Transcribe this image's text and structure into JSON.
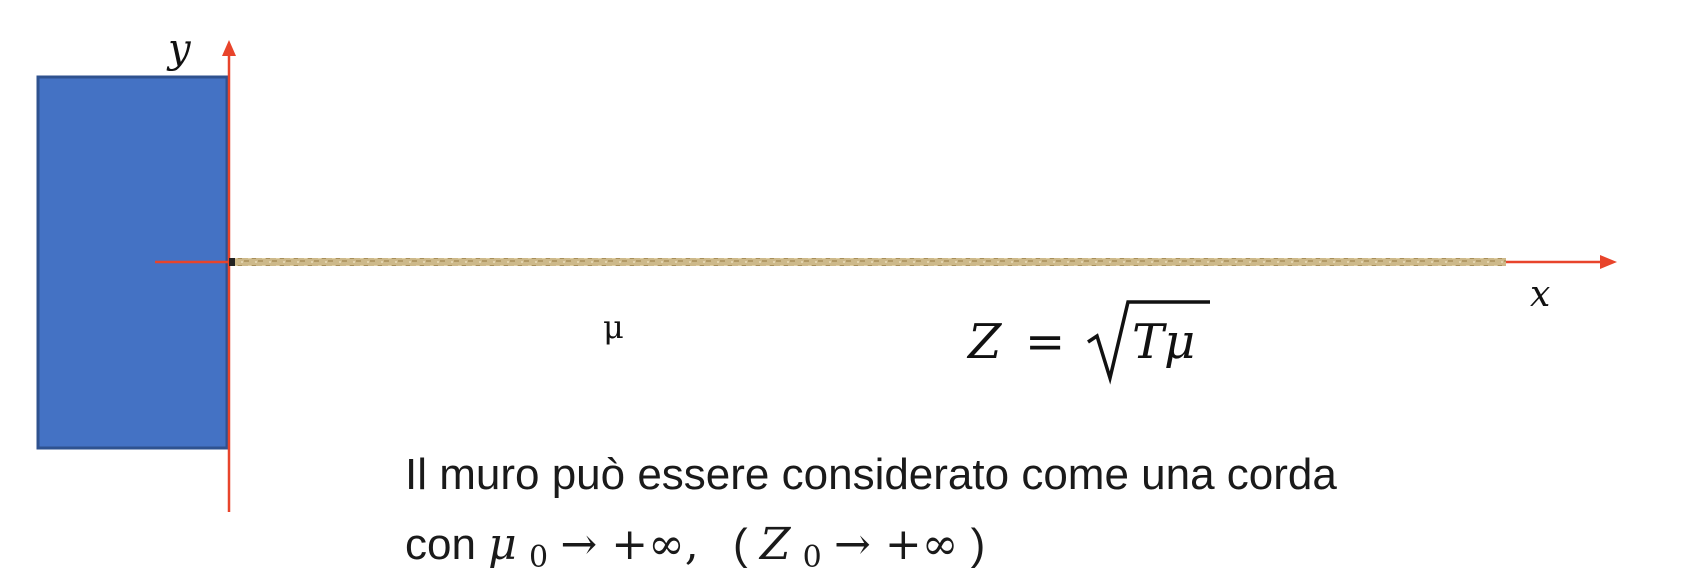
{
  "axes": {
    "y_label": "y",
    "x_label": "x",
    "color": "#e8442b"
  },
  "wall": {
    "color": "#4472c4",
    "border_color": "#2f528f"
  },
  "string": {
    "color": "#c9b584",
    "density_label": "μ"
  },
  "impedance": {
    "lhs": "Z",
    "eq": "=",
    "radicand": "Tμ"
  },
  "caption": {
    "line1": "Il muro può essere considerato come una corda",
    "line2_prefix": "con ",
    "line2_mu": "μ",
    "line2_mu_sub": "0",
    "line2_mu_limit": " → +∞,",
    "line2_paren_open": "(",
    "line2_Z": "Z",
    "line2_Z_sub": "0",
    "line2_Z_limit": " → +∞",
    "line2_paren_close": ")"
  }
}
